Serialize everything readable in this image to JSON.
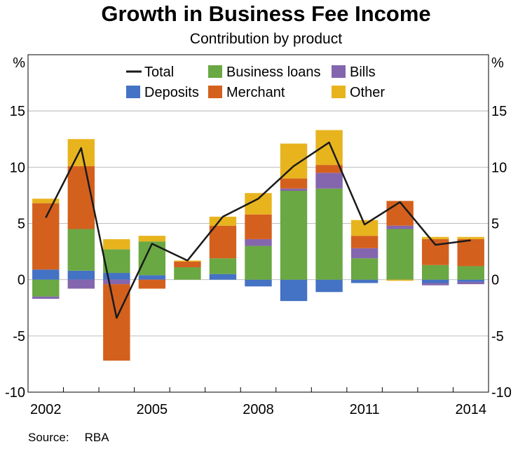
{
  "title": "Growth in Business Fee Income",
  "subtitle": "Contribution by product",
  "source": {
    "label": "Source:",
    "value": "RBA"
  },
  "colors": {
    "total": "#1a1a1a",
    "business_loans": "#6aa843",
    "bills": "#8466ae",
    "deposits": "#4472c4",
    "merchant": "#d4601e",
    "other": "#e8b41e",
    "grid": "#bfbfbf"
  },
  "chart_data": {
    "type": "bar",
    "stacked": true,
    "unit_label_left": "%",
    "unit_label_right": "%",
    "ylim": [
      -10,
      20
    ],
    "yticks": [
      -10,
      -5,
      0,
      5,
      10,
      15
    ],
    "grid": true,
    "legend_position": "top-center",
    "categories": [
      "2002",
      "2003",
      "2004",
      "2005",
      "2006",
      "2007",
      "2008",
      "2009",
      "2010",
      "2011",
      "2012",
      "2013",
      "2014"
    ],
    "xtick_labels": [
      "2002",
      "2005",
      "2008",
      "2011",
      "2014"
    ],
    "series": [
      {
        "name": "Deposits",
        "key": "deposits",
        "values": [
          0.9,
          0.8,
          0.6,
          0.4,
          0.0,
          0.5,
          -0.6,
          -1.9,
          -1.1,
          -0.3,
          0.0,
          -0.3,
          -0.2
        ]
      },
      {
        "name": "Business loans",
        "key": "business_loans",
        "values": [
          -1.5,
          3.7,
          2.1,
          3.0,
          1.1,
          1.4,
          3.0,
          7.9,
          8.1,
          1.9,
          4.5,
          1.3,
          1.2
        ]
      },
      {
        "name": "Bills",
        "key": "bills",
        "values": [
          -0.2,
          -0.8,
          -0.4,
          0.0,
          0.0,
          0.0,
          0.6,
          0.2,
          1.4,
          0.9,
          0.3,
          -0.2,
          -0.2
        ]
      },
      {
        "name": "Merchant",
        "key": "merchant",
        "values": [
          5.9,
          5.6,
          -6.8,
          -0.8,
          0.5,
          2.9,
          2.2,
          0.9,
          0.7,
          1.1,
          2.2,
          2.3,
          2.4
        ]
      },
      {
        "name": "Other",
        "key": "other",
        "values": [
          0.4,
          2.4,
          0.9,
          0.5,
          0.1,
          0.8,
          1.9,
          3.1,
          3.1,
          1.4,
          -0.1,
          0.2,
          0.2
        ]
      }
    ],
    "total": {
      "name": "Total",
      "key": "total",
      "values": [
        5.5,
        11.7,
        -3.4,
        3.2,
        1.7,
        5.6,
        7.2,
        10.1,
        12.2,
        4.9,
        6.9,
        3.1,
        3.5
      ]
    },
    "legend": [
      {
        "name": "Total",
        "key": "total",
        "kind": "line"
      },
      {
        "name": "Business loans",
        "key": "business_loans",
        "kind": "box"
      },
      {
        "name": "Bills",
        "key": "bills",
        "kind": "box"
      },
      {
        "name": "Deposits",
        "key": "deposits",
        "kind": "box"
      },
      {
        "name": "Merchant",
        "key": "merchant",
        "kind": "box"
      },
      {
        "name": "Other",
        "key": "other",
        "kind": "box"
      }
    ]
  }
}
